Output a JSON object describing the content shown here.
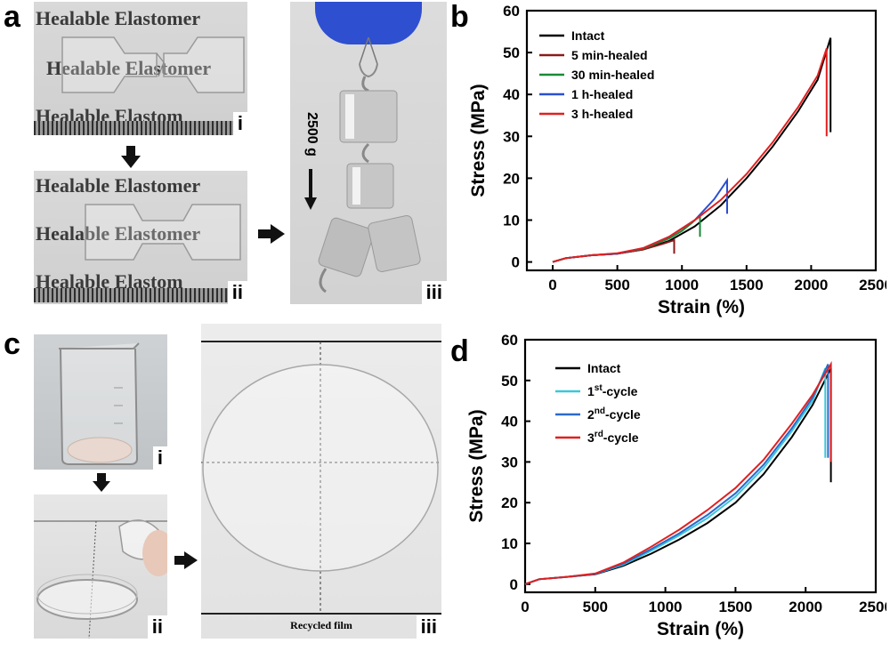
{
  "panels": {
    "a": {
      "letter": "a",
      "label_i": "i",
      "label_ii": "ii",
      "label_iii": "iii",
      "photo_text": [
        "Healable Elastomer",
        "Healable Elastomer",
        "Healable Elastom"
      ],
      "photo_text_ii": [
        "Healable Elastomer",
        "Healable Elastomer",
        "Healable Elastom"
      ],
      "weight_label": "2500 g"
    },
    "c": {
      "letter": "c",
      "label_i": "i",
      "label_ii": "ii",
      "label_iii": "iii",
      "film_caption": "Recycled film"
    },
    "b": {
      "letter": "b"
    },
    "d": {
      "letter": "d"
    }
  },
  "chart_data": [
    {
      "type": "line",
      "panel": "b",
      "xlabel": "Strain (%)",
      "ylabel": "Stress (MPa)",
      "xlim": [
        -200,
        2500
      ],
      "ylim": [
        -2,
        60
      ],
      "xticks": [
        0,
        500,
        1000,
        1500,
        2000,
        2500
      ],
      "yticks": [
        0,
        10,
        20,
        30,
        40,
        50,
        60
      ],
      "legend_position": "top-left",
      "series": [
        {
          "name": "Intact",
          "color": "#000000",
          "points": [
            [
              0,
              0
            ],
            [
              100,
              0.9
            ],
            [
              300,
              1.6
            ],
            [
              500,
              2.0
            ],
            [
              700,
              3.0
            ],
            [
              900,
              5.0
            ],
            [
              1100,
              8.5
            ],
            [
              1300,
              13.5
            ],
            [
              1500,
              20.0
            ],
            [
              1700,
              27.5
            ],
            [
              1900,
              36.0
            ],
            [
              2050,
              43.5
            ],
            [
              2150,
              53.5
            ],
            [
              2150,
              31.0
            ]
          ]
        },
        {
          "name": "5 min-healed",
          "color": "#8b1a1a",
          "points": [
            [
              0,
              0
            ],
            [
              100,
              0.9
            ],
            [
              300,
              1.6
            ],
            [
              500,
              2.0
            ],
            [
              700,
              3.0
            ],
            [
              850,
              4.3
            ],
            [
              940,
              5.2
            ],
            [
              940,
              2.0
            ]
          ]
        },
        {
          "name": "30 min-healed",
          "color": "#1a8a3a",
          "points": [
            [
              0,
              0
            ],
            [
              100,
              0.9
            ],
            [
              300,
              1.6
            ],
            [
              500,
              2.0
            ],
            [
              700,
              3.2
            ],
            [
              900,
              5.6
            ],
            [
              1000,
              7.4
            ],
            [
              1080,
              9.4
            ],
            [
              1140,
              11.2
            ],
            [
              1140,
              6.0
            ]
          ]
        },
        {
          "name": "1 h-healed",
          "color": "#2a4fd0",
          "points": [
            [
              0,
              0
            ],
            [
              100,
              0.9
            ],
            [
              300,
              1.6
            ],
            [
              500,
              2.0
            ],
            [
              700,
              3.3
            ],
            [
              900,
              6.0
            ],
            [
              1100,
              10.0
            ],
            [
              1250,
              15.0
            ],
            [
              1350,
              19.5
            ],
            [
              1350,
              11.5
            ]
          ]
        },
        {
          "name": "3 h-healed",
          "color": "#e02020",
          "points": [
            [
              0,
              0
            ],
            [
              100,
              0.9
            ],
            [
              300,
              1.6
            ],
            [
              500,
              2.1
            ],
            [
              700,
              3.3
            ],
            [
              900,
              6.0
            ],
            [
              1100,
              10.0
            ],
            [
              1300,
              14.8
            ],
            [
              1500,
              21.0
            ],
            [
              1700,
              28.5
            ],
            [
              1900,
              37.0
            ],
            [
              2050,
              44.5
            ],
            [
              2120,
              51.0
            ],
            [
              2120,
              30.0
            ]
          ]
        }
      ]
    },
    {
      "type": "line",
      "panel": "d",
      "xlabel": "Strain (%)",
      "ylabel": "Stress (MPa)",
      "xlim": [
        0,
        2500
      ],
      "ylim": [
        -2,
        60
      ],
      "xticks": [
        0,
        500,
        1000,
        1500,
        2000,
        2500
      ],
      "yticks": [
        0,
        10,
        20,
        30,
        40,
        50,
        60
      ],
      "legend_position": "top-left",
      "series": [
        {
          "name": "Intact",
          "name_sup": "",
          "name_rest": "",
          "color": "#000000",
          "points": [
            [
              0,
              0
            ],
            [
              100,
              1.2
            ],
            [
              300,
              1.8
            ],
            [
              500,
              2.4
            ],
            [
              700,
              4.5
            ],
            [
              900,
              7.5
            ],
            [
              1100,
              11.0
            ],
            [
              1300,
              15.0
            ],
            [
              1500,
              20.0
            ],
            [
              1700,
              27.0
            ],
            [
              1900,
              36.0
            ],
            [
              2050,
              44.0
            ],
            [
              2180,
              53.0
            ],
            [
              2180,
              25.0
            ]
          ]
        },
        {
          "name": "1",
          "name_sup": "st",
          "name_rest": "-cycle",
          "color": "#3ac8d8",
          "points": [
            [
              0,
              0
            ],
            [
              100,
              1.2
            ],
            [
              300,
              1.8
            ],
            [
              500,
              2.5
            ],
            [
              700,
              4.8
            ],
            [
              900,
              8.2
            ],
            [
              1100,
              12.0
            ],
            [
              1300,
              16.2
            ],
            [
              1500,
              21.5
            ],
            [
              1700,
              28.5
            ],
            [
              1900,
              37.5
            ],
            [
              2050,
              45.0
            ],
            [
              2140,
              53.0
            ],
            [
              2140,
              31.0
            ]
          ]
        },
        {
          "name": "2",
          "name_sup": "nd",
          "name_rest": "-cycle",
          "color": "#2a6acc",
          "points": [
            [
              0,
              0
            ],
            [
              100,
              1.2
            ],
            [
              300,
              1.8
            ],
            [
              500,
              2.5
            ],
            [
              700,
              5.0
            ],
            [
              900,
              8.6
            ],
            [
              1100,
              12.5
            ],
            [
              1300,
              17.0
            ],
            [
              1500,
              22.3
            ],
            [
              1700,
              29.3
            ],
            [
              1900,
              38.2
            ],
            [
              2050,
              45.8
            ],
            [
              2160,
              54.0
            ],
            [
              2160,
              31.0
            ]
          ]
        },
        {
          "name": "3",
          "name_sup": "rd",
          "name_rest": "-cycle",
          "color": "#e02020",
          "points": [
            [
              0,
              0
            ],
            [
              100,
              1.2
            ],
            [
              300,
              1.8
            ],
            [
              500,
              2.6
            ],
            [
              700,
              5.3
            ],
            [
              900,
              9.2
            ],
            [
              1100,
              13.4
            ],
            [
              1300,
              18.2
            ],
            [
              1500,
              23.6
            ],
            [
              1700,
              30.5
            ],
            [
              1900,
              39.3
            ],
            [
              2050,
              46.5
            ],
            [
              2180,
              54.0
            ],
            [
              2180,
              30.0
            ]
          ]
        }
      ]
    }
  ]
}
